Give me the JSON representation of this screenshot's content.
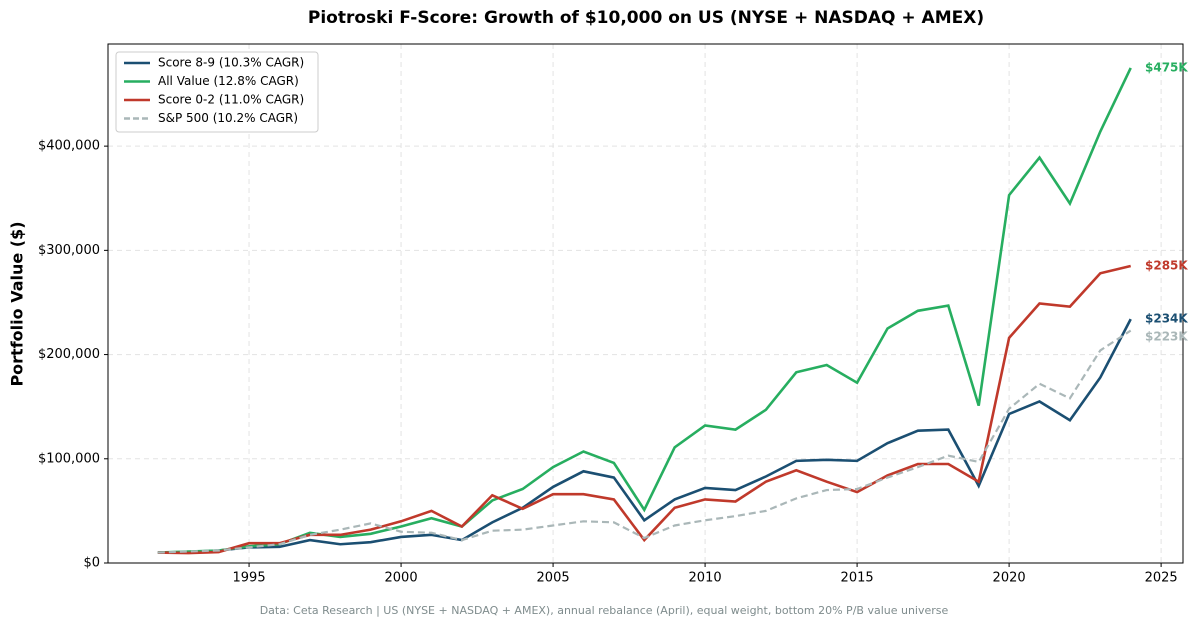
{
  "chart_data": {
    "type": "line",
    "title": "Piotroski F-Score: Growth of $10,000 on US (NYSE + NASDAQ + AMEX)",
    "ylabel": "Portfolio Value ($)",
    "footnote": "Data: Ceta Research | US (NYSE + NASDAQ + AMEX), annual rebalance (April), equal weight, bottom 20% P/B value universe",
    "x": [
      1992,
      1993,
      1994,
      1995,
      1996,
      1997,
      1998,
      1999,
      2000,
      2001,
      2002,
      2003,
      2004,
      2005,
      2006,
      2007,
      2008,
      2009,
      2010,
      2011,
      2012,
      2013,
      2014,
      2015,
      2016,
      2017,
      2018,
      2019,
      2020,
      2021,
      2022,
      2023,
      2024
    ],
    "series": [
      {
        "name": "Score 8-9 (10.3% CAGR)",
        "color": "#1b4f72",
        "linestyle": "solid",
        "end_label": "$234K",
        "values": [
          10000,
          10500,
          12000,
          15000,
          15500,
          22000,
          18000,
          20000,
          25000,
          27000,
          22000,
          39000,
          53000,
          73000,
          88000,
          82000,
          41000,
          61000,
          72000,
          70000,
          83000,
          98000,
          99000,
          98000,
          115000,
          127000,
          128000,
          74000,
          143000,
          155000,
          137000,
          178000,
          234000
        ]
      },
      {
        "name": "All Value (12.8% CAGR)",
        "color": "#27ae60",
        "linestyle": "solid",
        "end_label": "$475K",
        "values": [
          10000,
          11000,
          12000,
          16000,
          18000,
          29000,
          25000,
          28000,
          35000,
          43000,
          35000,
          60000,
          71000,
          92000,
          107000,
          96000,
          51000,
          111000,
          132000,
          128000,
          147000,
          183000,
          190000,
          173000,
          225000,
          242000,
          247000,
          151000,
          353000,
          389000,
          345000,
          414000,
          475000
        ]
      },
      {
        "name": "Score 0-2 (11.0% CAGR)",
        "color": "#c0392b",
        "linestyle": "solid",
        "end_label": "$285K",
        "values": [
          10000,
          9500,
          10500,
          19000,
          19000,
          27000,
          27000,
          32000,
          40000,
          50000,
          35000,
          65000,
          52000,
          66000,
          66000,
          61000,
          22000,
          53000,
          61000,
          59000,
          78000,
          89000,
          78000,
          68000,
          84000,
          95000,
          95000,
          78000,
          216000,
          249000,
          246000,
          278000,
          285000
        ]
      },
      {
        "name": "S&P 500 (10.2% CAGR)",
        "color": "#aab7b8",
        "linestyle": "dashed",
        "end_label": "$223K",
        "values": [
          10000,
          11000,
          12000,
          15000,
          18000,
          27000,
          32000,
          38000,
          30000,
          29000,
          22000,
          31000,
          32000,
          36000,
          40000,
          39000,
          24000,
          36000,
          41000,
          45000,
          50000,
          62000,
          70000,
          71000,
          82000,
          92000,
          103000,
          97000,
          148000,
          172000,
          158000,
          204000,
          223000
        ]
      }
    ],
    "xlim": [
      1990.36,
      2025.72
    ],
    "xticks": [
      1995,
      2000,
      2005,
      2010,
      2015,
      2020,
      2025
    ],
    "ylim": [
      0,
      498000
    ],
    "yticks": [
      {
        "value": 0,
        "label": "$0"
      },
      {
        "value": 100000,
        "label": "$100,000"
      },
      {
        "value": 200000,
        "label": "$200,000"
      },
      {
        "value": 300000,
        "label": "$300,000"
      },
      {
        "value": 400000,
        "label": "$400,000"
      }
    ],
    "grid": true,
    "legend": "upper left"
  }
}
